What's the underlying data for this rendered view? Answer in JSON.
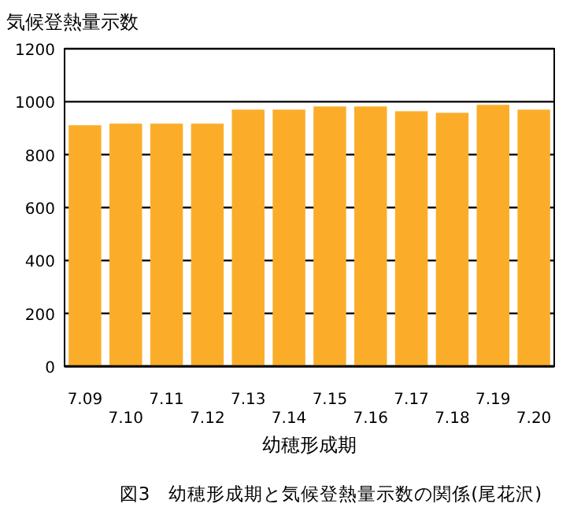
{
  "chart_data": {
    "type": "bar",
    "title": "図3　幼穂形成期と気候登熱量示数の関係(尾花沢)",
    "ylabel": "気候登熱量示数",
    "xlabel": "幼穂形成期",
    "categories": [
      "7.09",
      "7.10",
      "7.11",
      "7.12",
      "7.13",
      "7.14",
      "7.15",
      "7.16",
      "7.17",
      "7.18",
      "7.19",
      "7.20"
    ],
    "values": [
      911,
      917,
      917,
      917,
      970,
      970,
      982,
      982,
      964,
      958,
      988,
      970
    ],
    "color": "#fbad2a",
    "ylim": [
      0,
      1200
    ],
    "yticks": [
      0,
      200,
      400,
      600,
      800,
      1000,
      1200
    ],
    "grid": "y"
  }
}
